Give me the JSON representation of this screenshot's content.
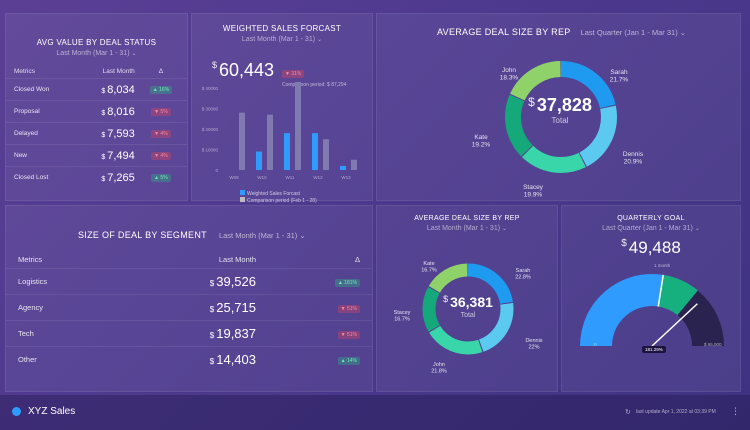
{
  "panel1": {
    "title": "AVG VALUE BY DEAL STATUS",
    "period": "Last Month (Mar 1 - 31)",
    "headers": [
      "Metrics",
      "Last Month",
      "Δ"
    ],
    "rows": [
      {
        "metric": "Closed Won",
        "value": "8,034",
        "delta": "▲ 16%",
        "dir": "up"
      },
      {
        "metric": "Proposal",
        "value": "8,016",
        "delta": "▼ 5%",
        "dir": "down"
      },
      {
        "metric": "Delayed",
        "value": "7,593",
        "delta": "▼ 4%",
        "dir": "down"
      },
      {
        "metric": "New",
        "value": "7,494",
        "delta": "▼ 4%",
        "dir": "down"
      },
      {
        "metric": "Closed Lost",
        "value": "7,265",
        "delta": "▲ 5%",
        "dir": "up"
      }
    ]
  },
  "panel2": {
    "title": "WEIGHTED SALES FORCAST",
    "period": "Last Month (Mar 1 - 31)",
    "value": "60,443",
    "delta": "▼ 31%",
    "comparison": "Comparison period: $ 87,294",
    "legend1": "Weighted Sales Forcast",
    "legend2": "Comparison period (Feb 1 - 28)"
  },
  "panel3": {
    "title": "AVERAGE DEAL SIZE BY REP",
    "period": "Last Quarter (Jan 1 - Mar 31)",
    "value": "37,828",
    "center_label": "Total"
  },
  "panel4": {
    "title": "SIZE OF DEAL BY SEGMENT",
    "period": "Last Month (Mar 1 - 31)",
    "headers": [
      "Metrics",
      "Last Month",
      "Δ"
    ],
    "rows": [
      {
        "metric": "Logistics",
        "value": "39,526",
        "delta": "▲ 181%",
        "dir": "up"
      },
      {
        "metric": "Agency",
        "value": "25,715",
        "delta": "▼ 51%",
        "dir": "down"
      },
      {
        "metric": "Tech",
        "value": "19,837",
        "delta": "▼ 51%",
        "dir": "down"
      },
      {
        "metric": "Other",
        "value": "14,403",
        "delta": "▲ 14%",
        "dir": "up"
      }
    ]
  },
  "panel5": {
    "title": "AVERAGE DEAL SIZE BY REP",
    "period": "Last Month (Mar 1 - 31)",
    "value": "36,381",
    "center_label": "Total"
  },
  "panel6": {
    "title": "QUARTERLY GOAL",
    "period": "Last Quarter (Jan 1 - Mar 31)",
    "value": "49,488",
    "gauge_min": "0",
    "gauge_max": "$ 65,000",
    "gauge_mark_label": "1 month",
    "gauge_pct": "181.29%"
  },
  "footer": {
    "brand": "XYZ Sales",
    "updated": "last update Apr 1, 2022 at 03:39 PM"
  },
  "chart_data": [
    {
      "type": "bar",
      "title": "WEIGHTED SALES FORCAST",
      "categories": [
        "W09",
        "W10",
        "W11",
        "W12",
        "W13"
      ],
      "series": [
        {
          "name": "Weighted Sales Forcast",
          "values": [
            0,
            9000,
            18000,
            18000,
            2000
          ],
          "color": "#2f9bff"
        },
        {
          "name": "Comparison period (Feb 1 - 28)",
          "values": [
            28000,
            27000,
            43000,
            15000,
            5000
          ],
          "color": "#7f7ab0"
        }
      ],
      "yticks": [
        "$ 40000",
        "$ 30000",
        "$ 20000",
        "$ 10000",
        "0"
      ],
      "ylim": [
        0,
        40000
      ]
    },
    {
      "type": "pie",
      "title": "AVERAGE DEAL SIZE BY REP",
      "slices": [
        {
          "name": "Sarah",
          "value": 21.7,
          "label": "21.7%",
          "color": "#1e9bf0"
        },
        {
          "name": "Dennis",
          "value": 20.9,
          "label": "20.9%",
          "color": "#5ccaf0"
        },
        {
          "name": "Stacey",
          "value": 19.9,
          "label": "19.9%",
          "color": "#38d6a8"
        },
        {
          "name": "Kate",
          "value": 19.2,
          "label": "19.2%",
          "color": "#14a87a"
        },
        {
          "name": "John",
          "value": 18.3,
          "label": "18.3%",
          "color": "#8fd26a"
        }
      ]
    },
    {
      "type": "pie",
      "title": "AVERAGE DEAL SIZE BY REP",
      "slices": [
        {
          "name": "Sarah",
          "value": 22.8,
          "label": "22.8%",
          "color": "#1e9bf0"
        },
        {
          "name": "Dennis",
          "value": 22,
          "label": "22%",
          "color": "#5ccaf0"
        },
        {
          "name": "John",
          "value": 21.8,
          "label": "21.8%",
          "color": "#38d6a8"
        },
        {
          "name": "Stacey",
          "value": 16.7,
          "label": "16.7%",
          "color": "#14a87a"
        },
        {
          "name": "Kate",
          "value": 16.7,
          "label": "16.7%",
          "color": "#8fd26a"
        }
      ]
    },
    {
      "type": "gauge",
      "title": "QUARTERLY GOAL",
      "value": 49488,
      "max": 65000,
      "bands": [
        {
          "value": 0.55,
          "color": "#2f9bff"
        },
        {
          "value": 0.72,
          "color": "#16b07f"
        },
        {
          "value": 1.0,
          "color": "#2a2350"
        }
      ]
    }
  ]
}
